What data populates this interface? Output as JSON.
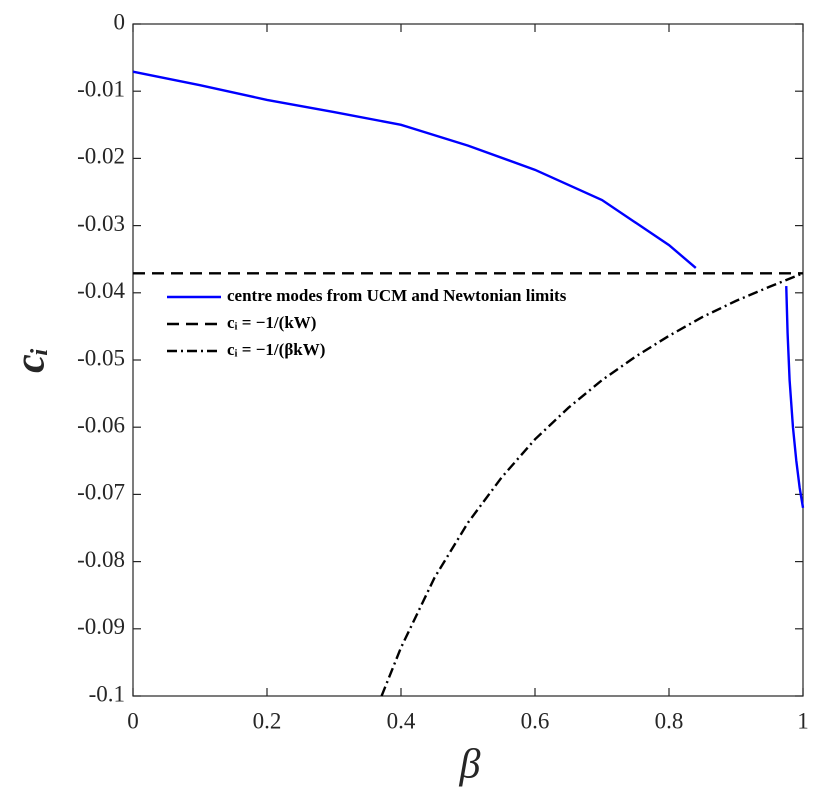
{
  "chart_data": {
    "type": "line",
    "xlabel": "β",
    "ylabel": "cᵢ",
    "xlim": [
      0,
      1
    ],
    "ylim": [
      -0.1,
      0
    ],
    "xticks": [
      0,
      0.2,
      0.4,
      0.6,
      0.8,
      1
    ],
    "yticks": [
      0,
      -0.01,
      -0.02,
      -0.03,
      -0.04,
      -0.05,
      -0.06,
      -0.07,
      -0.08,
      -0.09,
      -0.1
    ],
    "legend": "upper left",
    "series": [
      {
        "name": "centre modes from UCM and Newtonian limits",
        "color": "#0000ff",
        "line_style": "solid",
        "x": [
          0,
          0.1,
          0.2,
          0.3,
          0.4,
          0.5,
          0.6,
          0.7,
          0.8,
          0.84,
          null,
          0.975,
          0.977,
          0.98,
          0.985,
          0.99,
          0.995,
          1
        ],
        "values": [
          -0.0071,
          -0.0091,
          -0.0113,
          -0.0131,
          -0.015,
          -0.0181,
          -0.0217,
          -0.0262,
          -0.0329,
          -0.0363,
          null,
          -0.039,
          -0.046,
          -0.053,
          -0.06,
          -0.065,
          -0.069,
          -0.072
        ]
      },
      {
        "name": "cᵢ = −1/(kW)",
        "color": "#000000",
        "line_style": "dashed",
        "x": [
          0,
          1
        ],
        "values": [
          -0.0371,
          -0.0371
        ]
      },
      {
        "name": "cᵢ = −1/(βkW)",
        "color": "#000000",
        "line_style": "dashdot",
        "x": [
          0.371,
          0.4,
          0.45,
          0.5,
          0.55,
          0.6,
          0.65,
          0.7,
          0.75,
          0.8,
          0.85,
          0.9,
          0.95,
          1
        ],
        "values": [
          -0.1,
          -0.0928,
          -0.0824,
          -0.0742,
          -0.0675,
          -0.0618,
          -0.0571,
          -0.053,
          -0.0495,
          -0.0464,
          -0.0436,
          -0.0412,
          -0.0391,
          -0.0371
        ]
      }
    ]
  }
}
